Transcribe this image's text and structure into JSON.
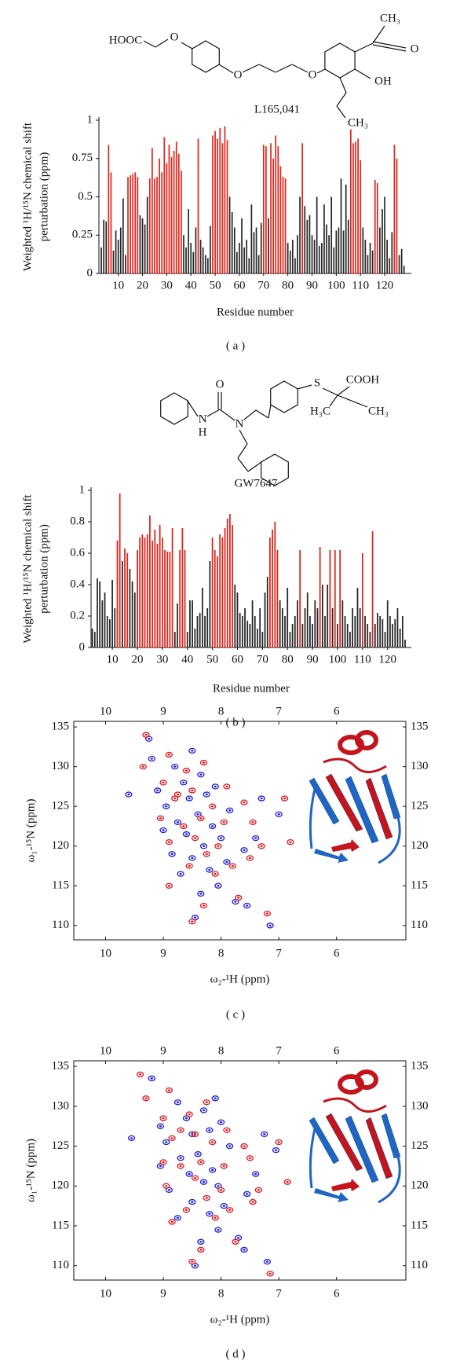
{
  "chart_data": [
    {
      "type": "bar",
      "panel_label": "( a )",
      "compound": "L165,041",
      "structure_labels": [
        "HOOC",
        "O",
        "O",
        "O",
        "CH₃",
        "O",
        "OH",
        "CH₃"
      ],
      "y_label": [
        "Weighted ¹H/¹⁵N chemical shift",
        "perturbation (ppm)"
      ],
      "x_label": "Residue number",
      "xlim": [
        2,
        131
      ],
      "ylim": [
        0,
        1
      ],
      "xticks": [
        10,
        20,
        30,
        40,
        50,
        60,
        70,
        80,
        90,
        100,
        110,
        120
      ],
      "yticks": [
        0,
        0.25,
        0.5,
        0.75,
        1
      ],
      "x": [
        3,
        4,
        5,
        6,
        7,
        8,
        9,
        10,
        11,
        12,
        13,
        14,
        15,
        16,
        17,
        18,
        19,
        20,
        21,
        22,
        23,
        24,
        25,
        26,
        27,
        28,
        29,
        30,
        31,
        32,
        33,
        34,
        35,
        36,
        37,
        38,
        39,
        40,
        41,
        42,
        43,
        44,
        45,
        46,
        47,
        48,
        49,
        50,
        51,
        52,
        53,
        54,
        55,
        56,
        57,
        58,
        59,
        60,
        61,
        62,
        63,
        64,
        65,
        66,
        67,
        68,
        69,
        70,
        71,
        72,
        73,
        74,
        75,
        76,
        77,
        78,
        79,
        80,
        81,
        82,
        83,
        84,
        85,
        86,
        87,
        88,
        89,
        90,
        91,
        92,
        93,
        94,
        95,
        96,
        97,
        98,
        99,
        100,
        101,
        102,
        103,
        104,
        105,
        106,
        107,
        108,
        109,
        110,
        111,
        112,
        113,
        114,
        115,
        116,
        117,
        118,
        119,
        120,
        121,
        122,
        123,
        124,
        125,
        126,
        127,
        128
      ],
      "values": [
        0.17,
        0.35,
        0.34,
        0.84,
        0.66,
        0.15,
        0.28,
        0.22,
        0.3,
        0.49,
        0.12,
        0.63,
        0.64,
        0.65,
        0.66,
        0.63,
        0.38,
        0.36,
        0.32,
        0.5,
        0.62,
        0.82,
        0.62,
        0.63,
        0.75,
        0.66,
        0.89,
        0.72,
        0.84,
        0.76,
        0.8,
        0.86,
        0.78,
        0.67,
        0.25,
        0.17,
        0.42,
        0.2,
        0.14,
        0.3,
        0.88,
        0.22,
        0.17,
        0.12,
        0.1,
        0.31,
        0.9,
        0.93,
        0.88,
        0.95,
        0.85,
        0.96,
        0.87,
        0.5,
        0.4,
        0.3,
        0.14,
        0.2,
        0.36,
        0.17,
        0.22,
        0.1,
        0.45,
        0.27,
        0.3,
        0.12,
        0.33,
        0.84,
        0.83,
        0.36,
        0.85,
        0.75,
        0.9,
        0.83,
        0.7,
        0.63,
        0.62,
        0.2,
        0.15,
        0.22,
        0.1,
        0.25,
        0.5,
        0.85,
        0.44,
        0.35,
        0.38,
        0.25,
        0.22,
        0.5,
        0.18,
        0.2,
        0.45,
        0.32,
        0.25,
        0.5,
        0.17,
        0.28,
        0.3,
        0.62,
        0.28,
        0.58,
        0.35,
        0.94,
        0.85,
        0.86,
        0.88,
        0.74,
        0.3,
        0.22,
        0.12,
        0.2,
        0.15,
        0.61,
        0.59,
        0.3,
        0.42,
        0.5,
        0.22,
        0.1,
        0.27,
        0.84,
        0.75,
        0.12,
        0.16,
        0.05
      ],
      "colors": [
        "#262626",
        "#262626",
        "#262626",
        "#e2231a",
        "#e2231a",
        "#262626",
        "#262626",
        "#262626",
        "#262626",
        "#262626",
        "#262626",
        "#e2231a",
        "#e2231a",
        "#e2231a",
        "#e2231a",
        "#e2231a",
        "#262626",
        "#262626",
        "#262626",
        "#262626",
        "#e2231a",
        "#e2231a",
        "#e2231a",
        "#e2231a",
        "#e2231a",
        "#e2231a",
        "#e2231a",
        "#e2231a",
        "#e2231a",
        "#e2231a",
        "#e2231a",
        "#e2231a",
        "#e2231a",
        "#e2231a",
        "#262626",
        "#262626",
        "#262626",
        "#262626",
        "#262626",
        "#262626",
        "#e2231a",
        "#262626",
        "#262626",
        "#262626",
        "#262626",
        "#262626",
        "#e2231a",
        "#e2231a",
        "#e2231a",
        "#e2231a",
        "#e2231a",
        "#e2231a",
        "#e2231a",
        "#262626",
        "#262626",
        "#262626",
        "#262626",
        "#262626",
        "#262626",
        "#262626",
        "#262626",
        "#262626",
        "#262626",
        "#262626",
        "#262626",
        "#262626",
        "#262626",
        "#e2231a",
        "#e2231a",
        "#262626",
        "#e2231a",
        "#e2231a",
        "#e2231a",
        "#e2231a",
        "#e2231a",
        "#e2231a",
        "#e2231a",
        "#262626",
        "#262626",
        "#262626",
        "#262626",
        "#262626",
        "#262626",
        "#e2231a",
        "#262626",
        "#262626",
        "#262626",
        "#262626",
        "#262626",
        "#262626",
        "#262626",
        "#262626",
        "#262626",
        "#262626",
        "#262626",
        "#262626",
        "#262626",
        "#262626",
        "#262626",
        "#262626",
        "#262626",
        "#262626",
        "#262626",
        "#e2231a",
        "#e2231a",
        "#e2231a",
        "#e2231a",
        "#e2231a",
        "#262626",
        "#262626",
        "#262626",
        "#262626",
        "#262626",
        "#e2231a",
        "#e2231a",
        "#262626",
        "#262626",
        "#262626",
        "#262626",
        "#262626",
        "#262626",
        "#e2231a",
        "#e2231a",
        "#262626",
        "#262626",
        "#262626"
      ]
    },
    {
      "type": "bar",
      "panel_label": "( b )",
      "compound": "GW7647",
      "structure_labels": [
        "O",
        "N",
        "H",
        "N",
        "S",
        "COOH",
        "H₃C",
        "CH₃"
      ],
      "y_label": [
        "Weighted ¹H/¹⁵N chemical shift",
        "perturbation (ppm)"
      ],
      "x_label": "Residue number",
      "xlim": [
        1.5,
        129.5
      ],
      "ylim": [
        0,
        1
      ],
      "xticks": [
        10,
        20,
        30,
        40,
        50,
        60,
        70,
        80,
        90,
        100,
        110,
        120
      ],
      "yticks": [
        0,
        0.2,
        0.4,
        0.6,
        0.8,
        1
      ],
      "x": [
        2,
        3,
        4,
        5,
        6,
        7,
        8,
        9,
        10,
        11,
        12,
        13,
        14,
        15,
        16,
        17,
        18,
        19,
        20,
        21,
        22,
        23,
        24,
        25,
        26,
        27,
        28,
        29,
        30,
        31,
        32,
        33,
        34,
        35,
        36,
        37,
        38,
        39,
        40,
        41,
        42,
        43,
        44,
        45,
        46,
        47,
        48,
        49,
        50,
        51,
        52,
        53,
        54,
        55,
        56,
        57,
        58,
        59,
        60,
        61,
        62,
        63,
        64,
        65,
        66,
        67,
        68,
        69,
        70,
        71,
        72,
        73,
        74,
        75,
        76,
        77,
        78,
        79,
        80,
        81,
        82,
        83,
        84,
        85,
        86,
        87,
        88,
        89,
        90,
        91,
        92,
        93,
        94,
        95,
        96,
        97,
        98,
        99,
        100,
        101,
        102,
        103,
        104,
        105,
        106,
        107,
        108,
        109,
        110,
        111,
        112,
        113,
        114,
        115,
        116,
        117,
        118,
        119,
        120,
        121,
        122,
        123,
        124,
        125,
        126,
        127
      ],
      "values": [
        0.12,
        0.1,
        0.44,
        0.42,
        0.3,
        0.35,
        0.2,
        0.18,
        0.43,
        0.25,
        0.68,
        0.98,
        0.55,
        0.63,
        0.6,
        0.5,
        0.42,
        0.35,
        0.62,
        0.7,
        0.72,
        0.7,
        0.72,
        0.84,
        0.68,
        0.75,
        0.66,
        0.78,
        0.7,
        0.62,
        0.61,
        0.61,
        0.76,
        0.1,
        0.28,
        0.62,
        0.76,
        0.62,
        0.1,
        0.3,
        0.3,
        0.12,
        0.2,
        0.22,
        0.38,
        0.2,
        0.25,
        0.55,
        0.7,
        0.62,
        0.58,
        0.72,
        0.7,
        0.76,
        0.82,
        0.85,
        0.78,
        0.4,
        0.35,
        0.22,
        0.2,
        0.25,
        0.17,
        0.15,
        0.3,
        0.2,
        0.12,
        0.25,
        0.1,
        0.35,
        0.45,
        0.7,
        0.75,
        0.8,
        0.62,
        0.3,
        0.25,
        0.2,
        0.38,
        0.1,
        0.15,
        0.2,
        0.3,
        0.62,
        0.15,
        0.25,
        0.35,
        0.2,
        0.15,
        0.3,
        0.25,
        0.64,
        0.4,
        0.2,
        0.4,
        0.62,
        0.25,
        0.62,
        0.15,
        0.62,
        0.3,
        0.2,
        0.15,
        0.1,
        0.25,
        0.2,
        0.38,
        0.25,
        0.6,
        0.2,
        0.15,
        0.1,
        0.74,
        0.15,
        0.22,
        0.2,
        0.18,
        0.1,
        0.3,
        0.2,
        0.15,
        0.18,
        0.25,
        0.12,
        0.2,
        0.05
      ],
      "colors": [
        "#262626",
        "#262626",
        "#262626",
        "#262626",
        "#262626",
        "#262626",
        "#262626",
        "#262626",
        "#262626",
        "#262626",
        "#e2231a",
        "#e2231a",
        "#262626",
        "#e2231a",
        "#e2231a",
        "#262626",
        "#262626",
        "#262626",
        "#e2231a",
        "#e2231a",
        "#e2231a",
        "#e2231a",
        "#e2231a",
        "#e2231a",
        "#e2231a",
        "#e2231a",
        "#e2231a",
        "#e2231a",
        "#e2231a",
        "#e2231a",
        "#e2231a",
        "#e2231a",
        "#e2231a",
        "#262626",
        "#262626",
        "#e2231a",
        "#e2231a",
        "#e2231a",
        "#262626",
        "#262626",
        "#262626",
        "#262626",
        "#262626",
        "#262626",
        "#262626",
        "#262626",
        "#262626",
        "#262626",
        "#e2231a",
        "#e2231a",
        "#e2231a",
        "#e2231a",
        "#e2231a",
        "#e2231a",
        "#e2231a",
        "#e2231a",
        "#e2231a",
        "#262626",
        "#262626",
        "#262626",
        "#262626",
        "#262626",
        "#262626",
        "#262626",
        "#262626",
        "#262626",
        "#262626",
        "#262626",
        "#262626",
        "#262626",
        "#262626",
        "#e2231a",
        "#e2231a",
        "#e2231a",
        "#e2231a",
        "#262626",
        "#262626",
        "#262626",
        "#262626",
        "#262626",
        "#262626",
        "#262626",
        "#262626",
        "#e2231a",
        "#262626",
        "#262626",
        "#262626",
        "#262626",
        "#262626",
        "#262626",
        "#262626",
        "#e2231a",
        "#262626",
        "#262626",
        "#262626",
        "#e2231a",
        "#262626",
        "#e2231a",
        "#262626",
        "#e2231a",
        "#262626",
        "#262626",
        "#262626",
        "#262626",
        "#262626",
        "#262626",
        "#262626",
        "#262626",
        "#e2231a",
        "#262626",
        "#262626",
        "#262626",
        "#e2231a",
        "#262626",
        "#262626",
        "#262626",
        "#262626",
        "#262626",
        "#262626",
        "#262626",
        "#262626",
        "#262626",
        "#262626",
        "#262626",
        "#262626",
        "#262626"
      ]
    },
    {
      "type": "scatter",
      "panel_label": "( c )",
      "x_label": "ω₂-¹H (ppm)",
      "y_label": "ω₁-¹⁵N (ppm)",
      "xlim": [
        10.55,
        4.8
      ],
      "ylim": [
        108.2,
        135.7
      ],
      "xticks": [
        10,
        9,
        8,
        7,
        6
      ],
      "yticks": [
        110,
        115,
        120,
        125,
        130,
        135
      ],
      "series": [
        {
          "color": "#1a1adb",
          "x": [
            8.45,
            7.15,
            7.55,
            7.75,
            8.35,
            8.05,
            8.7,
            8.2,
            7.9,
            8.5,
            8.85,
            7.6,
            8.3,
            8.0,
            8.6,
            9.0,
            8.15,
            7.4,
            8.75,
            8.4,
            7.85,
            8.95,
            8.55,
            8.25,
            9.1,
            8.65,
            8.35,
            8.8,
            9.2,
            8.5,
            9.6,
            9.25,
            7.3,
            7.0,
            8.1
          ],
          "y": [
            111,
            110,
            112.5,
            113,
            114,
            115,
            116.5,
            117,
            118,
            118.5,
            119,
            119.5,
            120,
            121,
            121.5,
            122,
            122.5,
            121,
            123,
            124,
            124.5,
            125,
            126,
            126.5,
            127,
            128,
            129,
            130,
            131,
            132,
            126.5,
            133.5,
            126,
            124,
            127.5
          ]
        },
        {
          "color": "#e0141c",
          "x": [
            8.5,
            7.2,
            7.7,
            8.3,
            8.9,
            8.1,
            7.8,
            8.55,
            8.25,
            7.5,
            8.9,
            8.05,
            8.65,
            7.3,
            8.35,
            9.05,
            7.95,
            6.8,
            8.8,
            8.5,
            7.6,
            9.0,
            8.6,
            8.3,
            8.9,
            8.75,
            7.9,
            8.15,
            9.35,
            9.3,
            6.9,
            7.45,
            8.45
          ],
          "y": [
            110.5,
            111.5,
            113.5,
            112.5,
            115,
            116.5,
            117.5,
            117.5,
            119,
            118.5,
            120.5,
            120,
            122.5,
            120,
            123.5,
            123.5,
            123,
            120.5,
            126,
            127,
            125.5,
            128,
            129.5,
            130.5,
            131.5,
            126.5,
            127.5,
            125,
            130,
            134,
            126,
            123,
            121
          ]
        }
      ]
    },
    {
      "type": "scatter",
      "panel_label": "( d )",
      "x_label": "ω₂-¹H (ppm)",
      "y_label": "ω₁-¹⁵N (ppm)",
      "xlim": [
        10.55,
        4.8
      ],
      "ylim": [
        108.2,
        135.7
      ],
      "xticks": [
        10,
        9,
        8,
        7,
        6
      ],
      "yticks": [
        110,
        115,
        120,
        125,
        130,
        135
      ],
      "series": [
        {
          "color": "#1a1adb",
          "x": [
            8.45,
            7.6,
            7.2,
            8.35,
            8.05,
            7.7,
            8.75,
            8.2,
            7.95,
            8.5,
            8.9,
            7.55,
            8.3,
            8.05,
            8.55,
            9.05,
            8.15,
            7.4,
            8.7,
            8.4,
            7.85,
            8.95,
            8.5,
            8.2,
            9.05,
            8.6,
            8.3,
            8.75,
            8.1,
            9.2,
            9.55,
            7.25,
            7.05,
            8.0
          ],
          "y": [
            110,
            112,
            110.5,
            113,
            114.5,
            113.5,
            116,
            116.5,
            117.5,
            118,
            119.5,
            119,
            120.5,
            120,
            121.5,
            122.5,
            122,
            121.5,
            123.5,
            124,
            125,
            125.5,
            126.5,
            127,
            127.5,
            128.5,
            129.5,
            130.5,
            131,
            133.5,
            126,
            126.5,
            124.5,
            128
          ]
        },
        {
          "color": "#e0141c",
          "x": [
            8.5,
            7.15,
            7.75,
            8.35,
            8.85,
            8.1,
            7.85,
            8.6,
            8.25,
            7.45,
            8.95,
            8.0,
            8.7,
            7.35,
            8.35,
            9.0,
            7.95,
            6.85,
            8.85,
            8.45,
            7.6,
            9.0,
            8.55,
            8.25,
            8.9,
            8.7,
            7.9,
            8.15,
            9.3,
            9.4,
            7.0,
            7.5,
            8.45
          ],
          "y": [
            110.5,
            109,
            113,
            112,
            115.5,
            116,
            117,
            117,
            118.5,
            118,
            120,
            119.5,
            122.5,
            119.5,
            123,
            123,
            122.5,
            120.5,
            126,
            126.5,
            125,
            128.5,
            129,
            130.5,
            132,
            127,
            127,
            125.5,
            131,
            134,
            125.5,
            123.5,
            121
          ]
        }
      ]
    }
  ]
}
